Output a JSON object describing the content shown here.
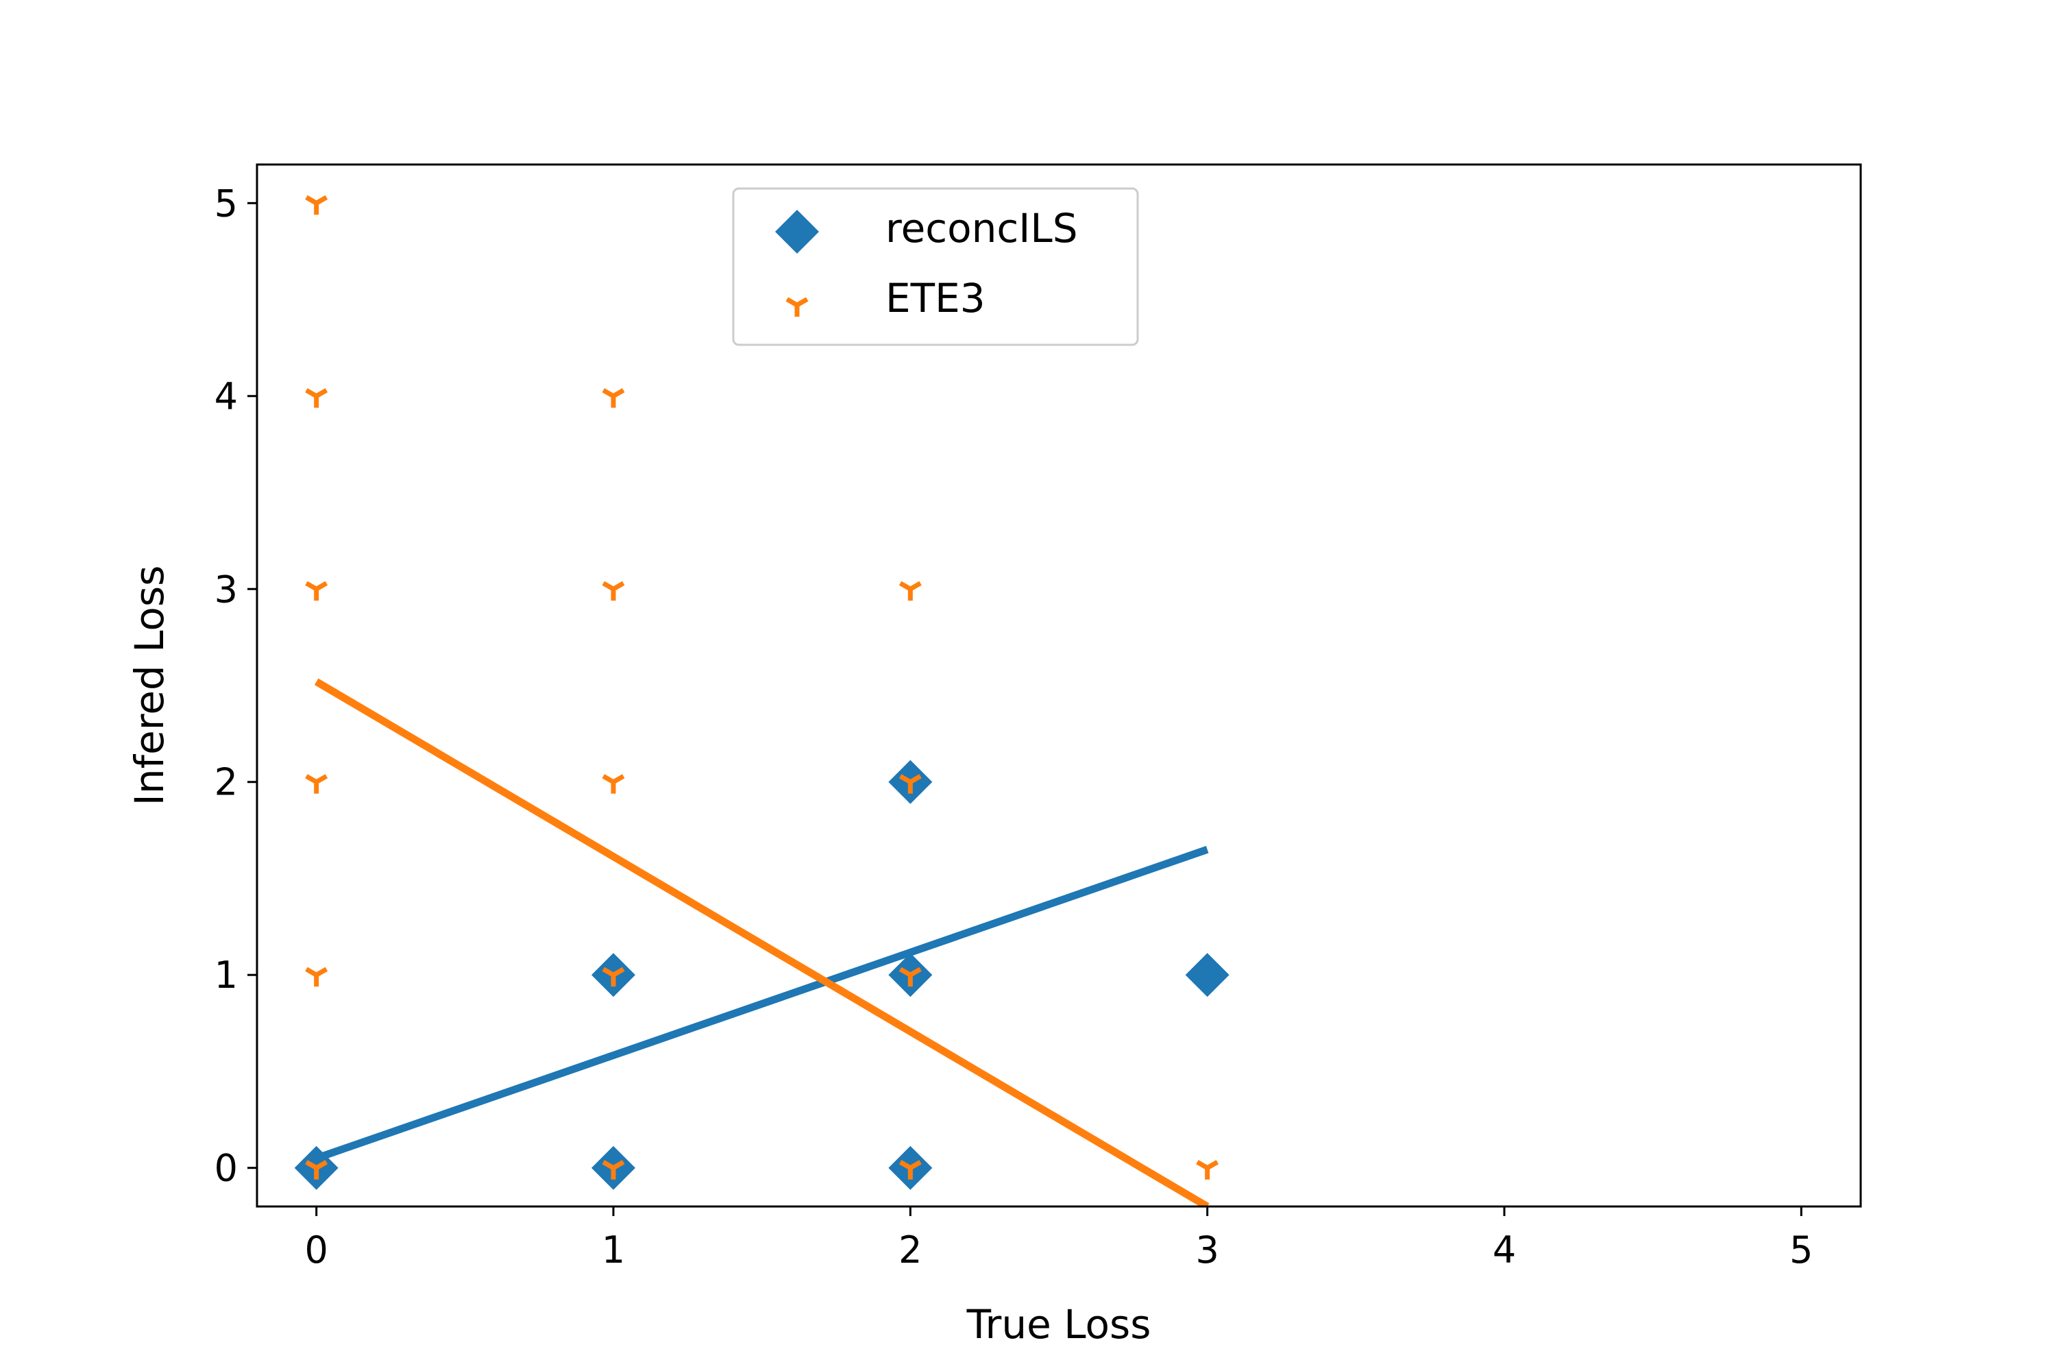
{
  "chart_data": {
    "type": "scatter",
    "xlabel": "True Loss",
    "ylabel": "Infered Loss",
    "xlim": [
      -0.2,
      5.2
    ],
    "ylim": [
      -0.2,
      5.2
    ],
    "xticks": [
      "0",
      "1",
      "2",
      "3",
      "4",
      "5"
    ],
    "yticks": [
      "0",
      "1",
      "2",
      "3",
      "4",
      "5"
    ],
    "legend_position": "upper-center",
    "series": [
      {
        "name": "reconcILS",
        "color": "#1f77b4",
        "marker": "diamond",
        "points": [
          [
            0,
            0
          ],
          [
            1,
            0
          ],
          [
            1,
            1
          ],
          [
            2,
            0
          ],
          [
            2,
            1
          ],
          [
            2,
            2
          ],
          [
            3,
            1
          ]
        ],
        "fit_line": [
          [
            0,
            0.05
          ],
          [
            3,
            1.65
          ]
        ]
      },
      {
        "name": "ETE3",
        "color": "#ff7f0e",
        "marker": "tri_down",
        "points": [
          [
            0,
            0
          ],
          [
            0,
            1
          ],
          [
            0,
            2
          ],
          [
            0,
            3
          ],
          [
            0,
            4
          ],
          [
            0,
            5
          ],
          [
            1,
            0
          ],
          [
            1,
            1
          ],
          [
            1,
            2
          ],
          [
            1,
            3
          ],
          [
            1,
            4
          ],
          [
            2,
            0
          ],
          [
            2,
            1
          ],
          [
            2,
            2
          ],
          [
            2,
            3
          ],
          [
            3,
            0
          ]
        ],
        "fit_line": [
          [
            0,
            2.52
          ],
          [
            3,
            -0.2
          ]
        ]
      }
    ]
  }
}
